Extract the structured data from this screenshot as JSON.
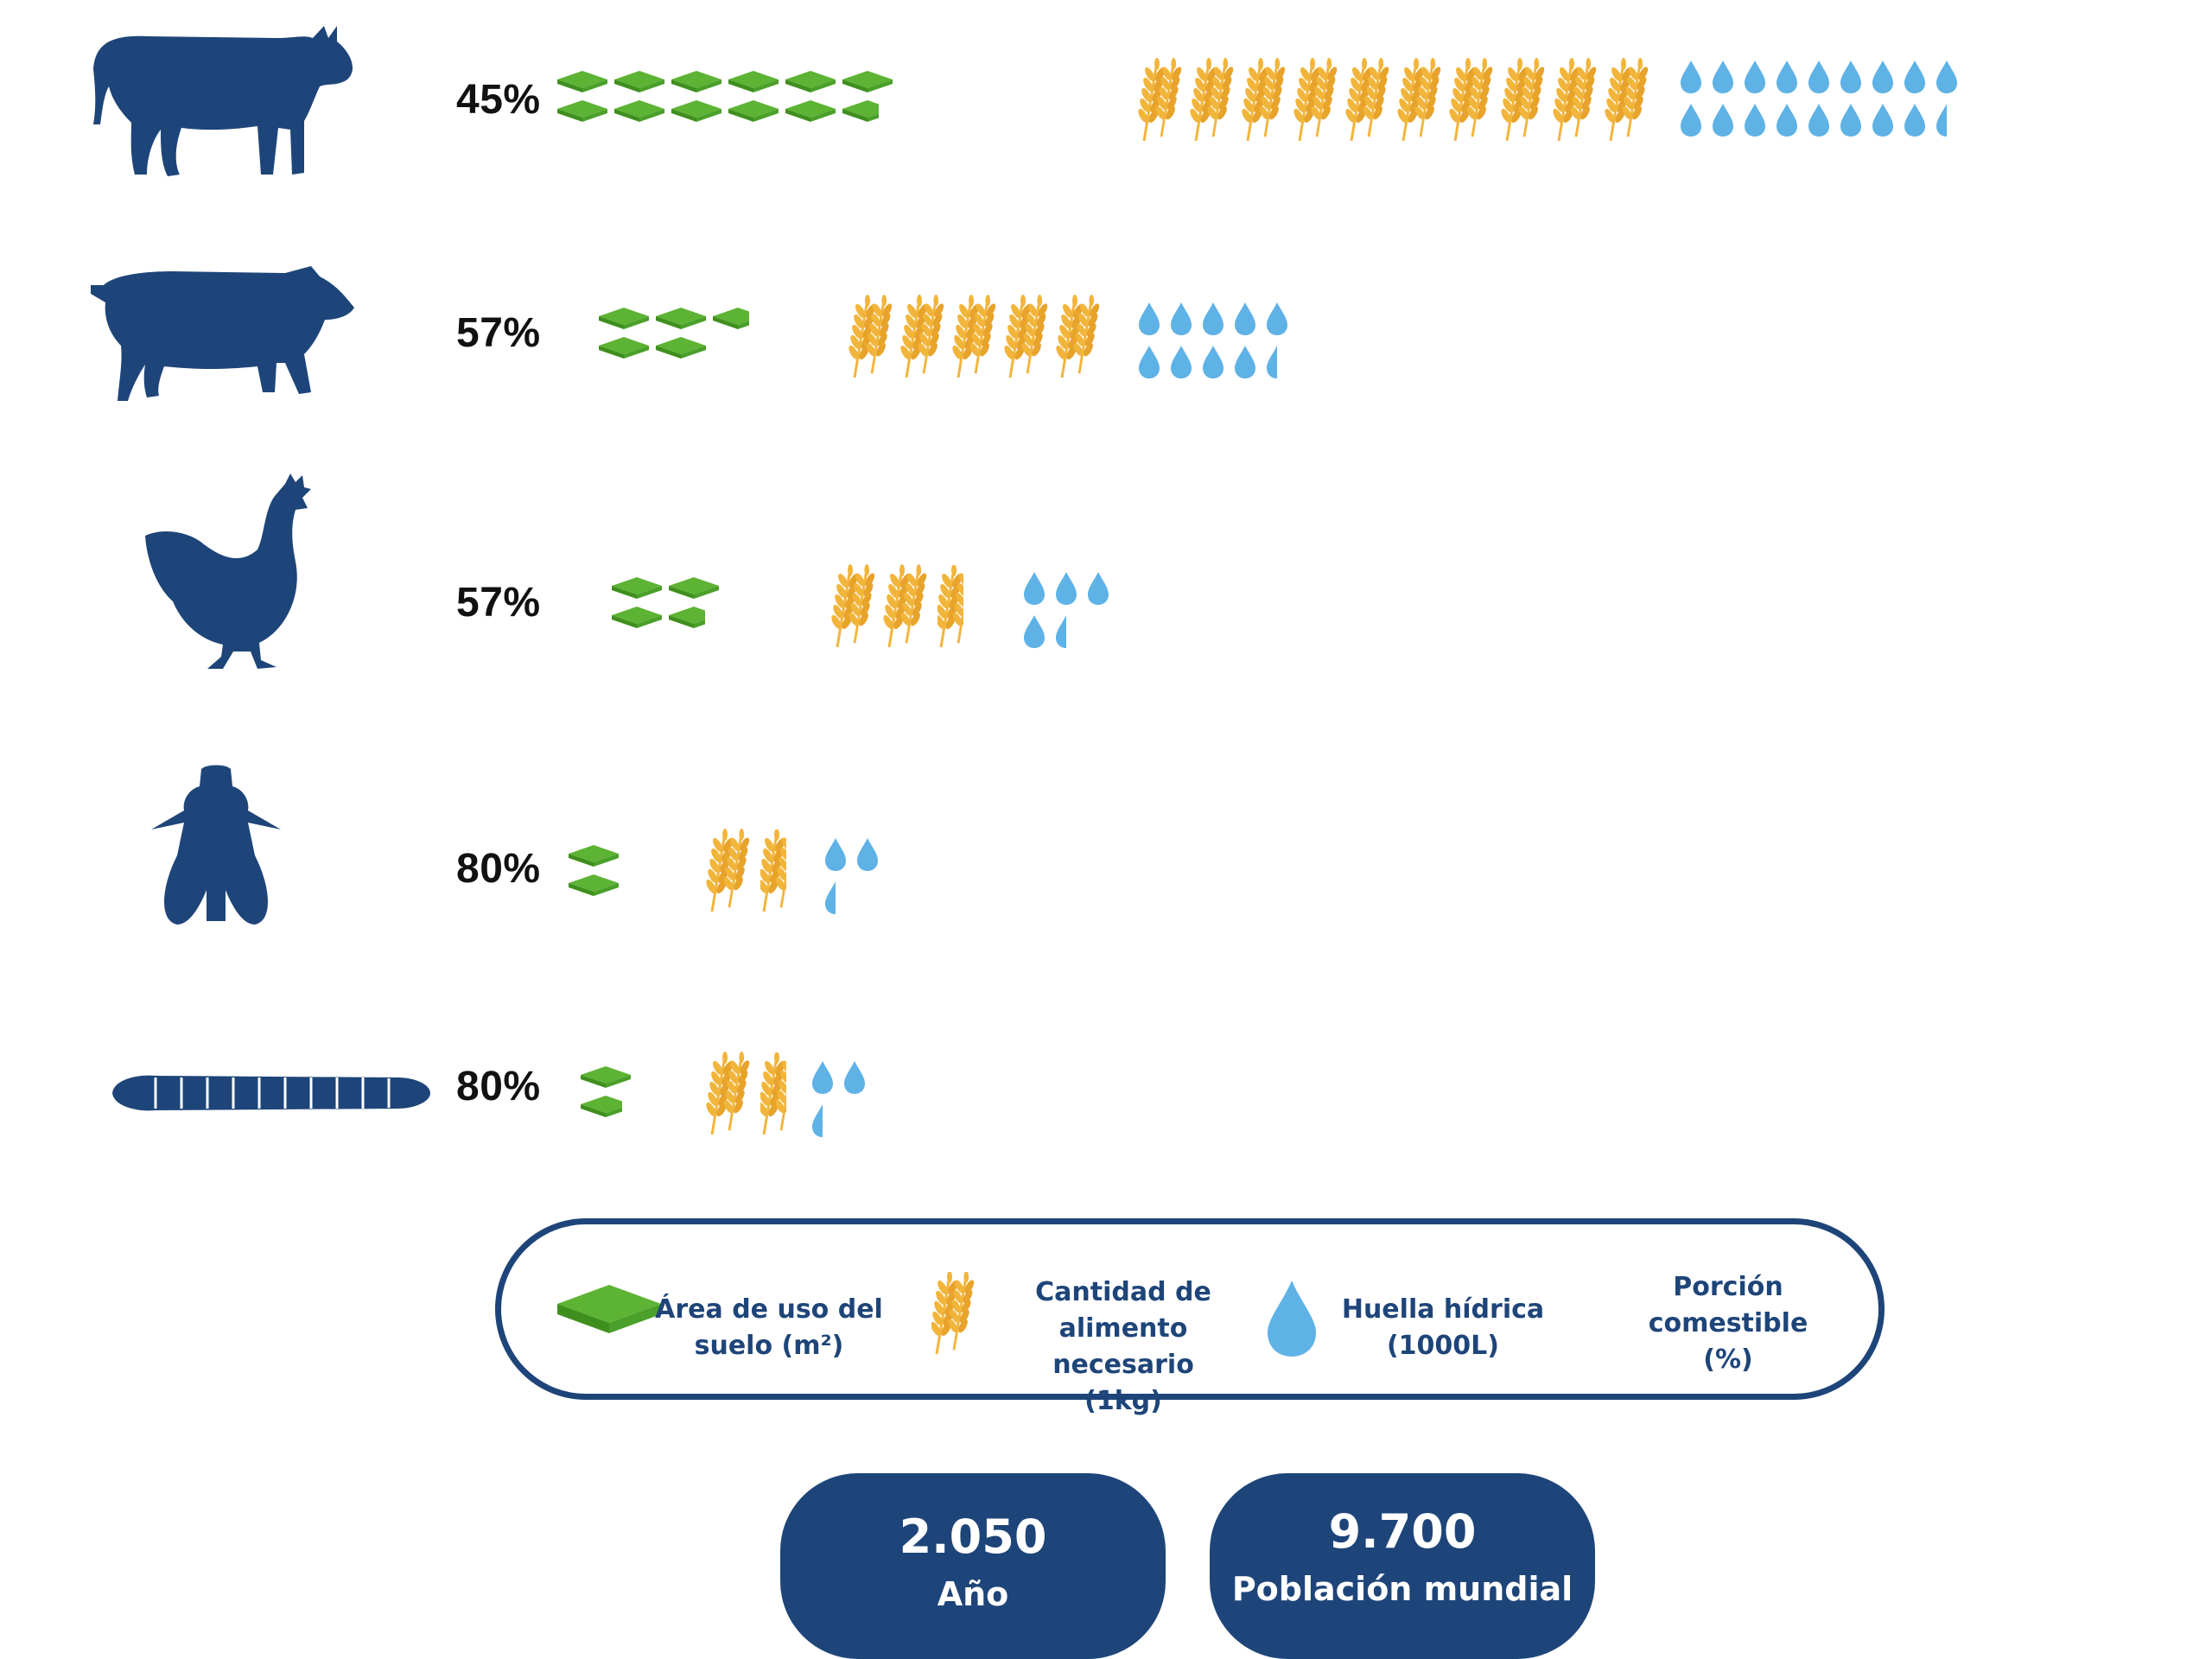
{
  "chart_data": {
    "type": "pictogram",
    "units": {
      "land": "Área de uso del suelo (m²)",
      "feed": "Cantidad de alimento necesario (1kg)",
      "water": "Huella hídrica (1000L)",
      "edible": "Porción comestible (%)"
    },
    "rows": [
      {
        "animal": "cow-icon",
        "edible_label": "45%",
        "edible_pct": 45,
        "land": 11.7,
        "feed": 10,
        "water": 17.5
      },
      {
        "animal": "pig-icon",
        "edible_label": "57%",
        "edible_pct": 57,
        "land": 4.7,
        "feed": 5,
        "water": 9.5
      },
      {
        "animal": "hen-icon",
        "edible_label": "57%",
        "edible_pct": 57,
        "land": 3.7,
        "feed": 2.5,
        "water": 4.5
      },
      {
        "animal": "fly-icon",
        "edible_label": "80%",
        "edible_pct": 80,
        "land": 2,
        "feed": 1.5,
        "water": 2.5
      },
      {
        "animal": "larva-icon",
        "edible_label": "80%",
        "edible_pct": 80,
        "land": 1.8,
        "feed": 1.5,
        "water": 2.5
      }
    ]
  },
  "legend": {
    "land_l1": "Área de uso del",
    "land_l2": "suelo (m²)",
    "feed_l1": "Cantidad de",
    "feed_l2": "alimento necesario",
    "feed_l3": "(1kg)",
    "water_l1": "Huella hídrica",
    "water_l2": "(1000L)",
    "edible_l1": "Porción",
    "edible_l2": "comestible",
    "edible_l3": "(%)"
  },
  "stats": {
    "year_value": "2.050",
    "year_label": "Año",
    "population_value": "9.700",
    "population_label": "Población mundial"
  },
  "colors": {
    "navy": "#1e4579",
    "green": "#5db333",
    "green_dark": "#3f8f1f",
    "wheat": "#f2b53c",
    "water": "#5fb2e6"
  }
}
